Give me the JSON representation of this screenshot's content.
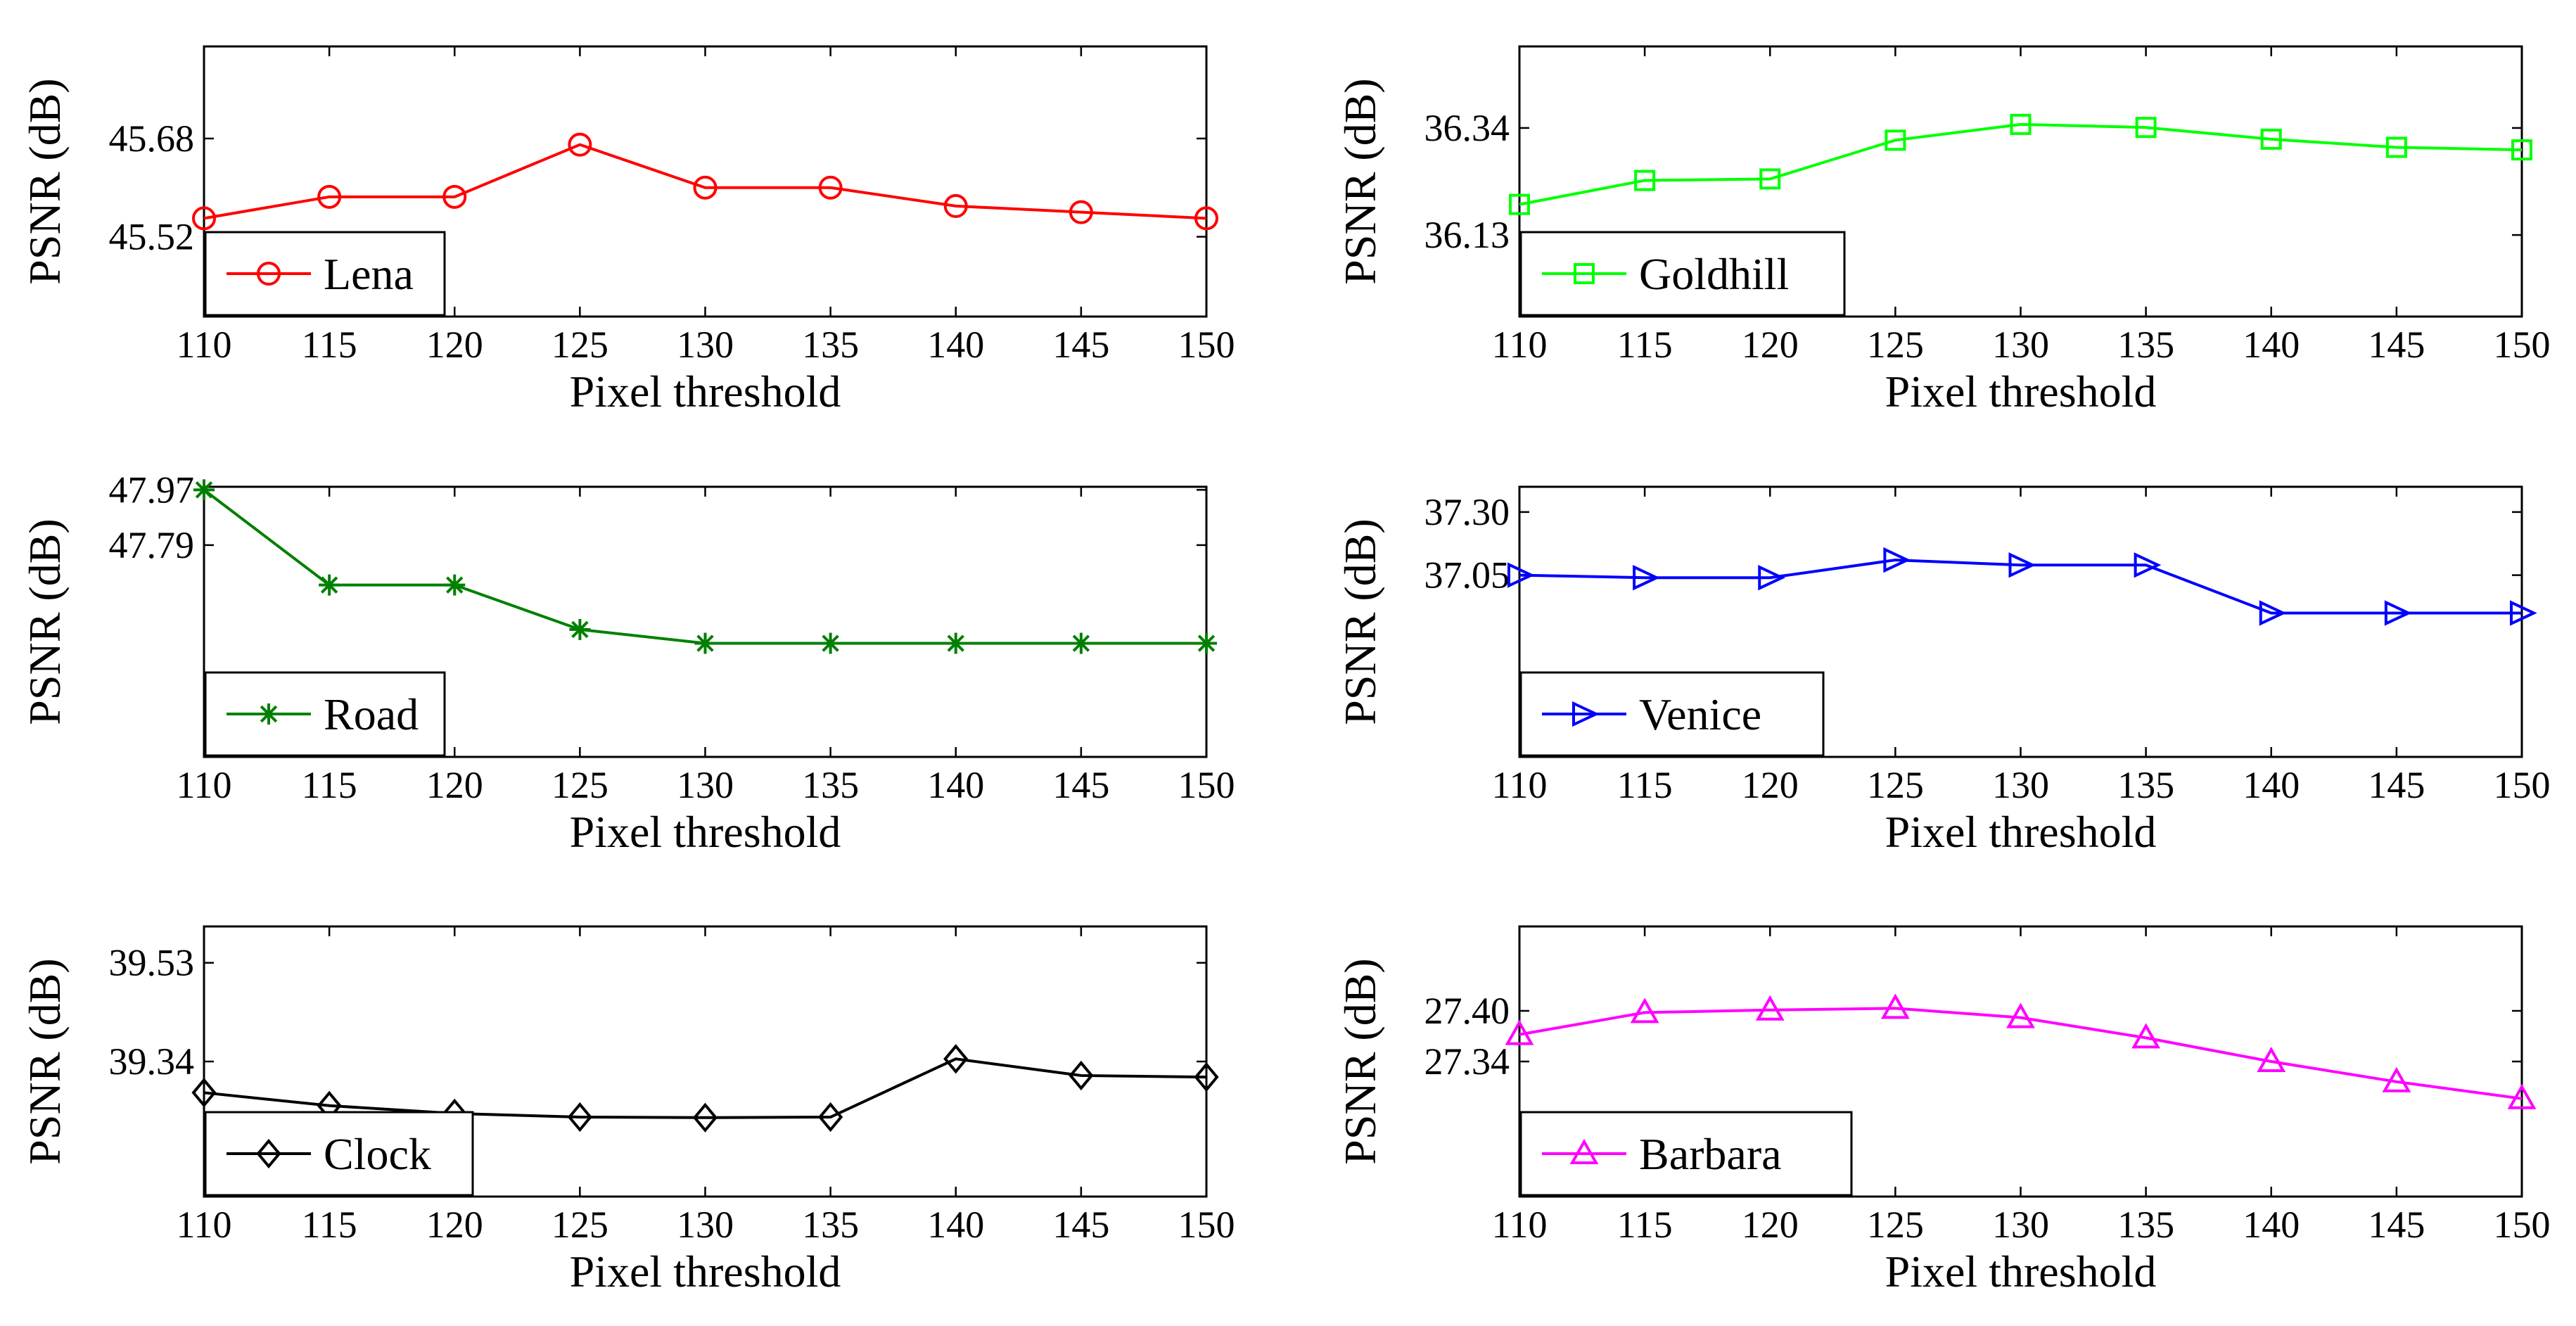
{
  "chart_data": [
    {
      "type": "line",
      "series": [
        {
          "name": "Lena",
          "values": [
            45.55,
            45.585,
            45.585,
            45.67,
            45.6,
            45.6,
            45.57,
            45.56,
            45.55
          ]
        }
      ],
      "x": [
        110,
        115,
        120,
        125,
        130,
        135,
        140,
        145,
        150
      ],
      "xticks": [
        "110",
        "115",
        "120",
        "125",
        "130",
        "135",
        "140",
        "145",
        "150"
      ],
      "xlim": [
        110,
        150
      ],
      "ylim": [
        45.39,
        45.83
      ],
      "yticks": [
        45.52,
        45.68
      ],
      "ytick_labels": [
        "45.52",
        "45.68"
      ],
      "xlabel": "Pixel threshold",
      "ylabel": "PSNR (dB)",
      "color": "#ff0000",
      "marker": "circle",
      "legend_position": "bottom-left"
    },
    {
      "type": "line",
      "series": [
        {
          "name": "Goldhill",
          "values": [
            36.19,
            36.237,
            36.24,
            36.316,
            36.347,
            36.341,
            36.318,
            36.302,
            36.297
          ]
        }
      ],
      "x": [
        110,
        115,
        120,
        125,
        130,
        135,
        140,
        145,
        150
      ],
      "xticks": [
        "110",
        "115",
        "120",
        "125",
        "130",
        "135",
        "140",
        "145",
        "150"
      ],
      "xlim": [
        110,
        150
      ],
      "ylim": [
        35.97,
        36.5
      ],
      "yticks": [
        36.13,
        36.34
      ],
      "ytick_labels": [
        "36.13",
        "36.34"
      ],
      "xlabel": "Pixel threshold",
      "ylabel": "PSNR (dB)",
      "color": "#00ff00",
      "marker": "square",
      "legend_position": "bottom-left"
    },
    {
      "type": "line",
      "series": [
        {
          "name": "Road",
          "values": [
            47.97,
            47.66,
            47.66,
            47.515,
            47.47,
            47.47,
            47.47,
            47.47,
            47.47
          ]
        }
      ],
      "x": [
        110,
        115,
        120,
        125,
        130,
        135,
        140,
        145,
        150
      ],
      "xticks": [
        "110",
        "115",
        "120",
        "125",
        "130",
        "135",
        "140",
        "145",
        "150"
      ],
      "xlim": [
        110,
        150
      ],
      "ylim": [
        47.1,
        47.98
      ],
      "yticks": [
        47.79,
        47.97
      ],
      "ytick_labels": [
        "47.79",
        "47.97"
      ],
      "xlabel": "Pixel threshold",
      "ylabel": "PSNR (dB)",
      "color": "#008000",
      "marker": "star",
      "legend_position": "bottom-left"
    },
    {
      "type": "line",
      "series": [
        {
          "name": "Venice",
          "values": [
            37.05,
            37.04,
            37.04,
            37.11,
            37.09,
            37.09,
            36.9,
            36.9,
            36.9
          ]
        }
      ],
      "x": [
        110,
        115,
        120,
        125,
        130,
        135,
        140,
        145,
        150
      ],
      "xticks": [
        "110",
        "115",
        "120",
        "125",
        "130",
        "135",
        "140",
        "145",
        "150"
      ],
      "xlim": [
        110,
        150
      ],
      "ylim": [
        36.33,
        37.4
      ],
      "yticks": [
        37.05,
        37.3
      ],
      "ytick_labels": [
        "37.05",
        "37.30"
      ],
      "xlabel": "Pixel threshold",
      "ylabel": "PSNR (dB)",
      "color": "#0000ff",
      "marker": "triangle-right",
      "legend_position": "bottom-left"
    },
    {
      "type": "line",
      "series": [
        {
          "name": "Clock",
          "values": [
            39.28,
            39.255,
            39.24,
            39.233,
            39.232,
            39.233,
            39.345,
            39.313,
            39.31
          ]
        }
      ],
      "x": [
        110,
        115,
        120,
        125,
        130,
        135,
        140,
        145,
        150
      ],
      "xticks": [
        "110",
        "115",
        "120",
        "125",
        "130",
        "135",
        "140",
        "145",
        "150"
      ],
      "xlim": [
        110,
        150
      ],
      "ylim": [
        39.08,
        39.6
      ],
      "yticks": [
        39.34,
        39.53
      ],
      "ytick_labels": [
        "39.34",
        "39.53"
      ],
      "xlabel": "Pixel threshold",
      "ylabel": "PSNR (dB)",
      "color": "#000000",
      "marker": "diamond",
      "legend_position": "bottom-left"
    },
    {
      "type": "line",
      "series": [
        {
          "name": "Barbara",
          "values": [
            27.372,
            27.398,
            27.401,
            27.403,
            27.392,
            27.368,
            27.34,
            27.316,
            27.296
          ]
        }
      ],
      "x": [
        110,
        115,
        120,
        125,
        130,
        135,
        140,
        145,
        150
      ],
      "xticks": [
        "110",
        "115",
        "120",
        "125",
        "130",
        "135",
        "140",
        "145",
        "150"
      ],
      "xlim": [
        110,
        150
      ],
      "ylim": [
        27.18,
        27.5
      ],
      "yticks": [
        27.34,
        27.4
      ],
      "ytick_labels": [
        "27.34",
        "27.40"
      ],
      "xlabel": "Pixel threshold",
      "ylabel": "PSNR (dB)",
      "color": "#ff00ff",
      "marker": "triangle-up",
      "legend_position": "bottom-left"
    }
  ]
}
